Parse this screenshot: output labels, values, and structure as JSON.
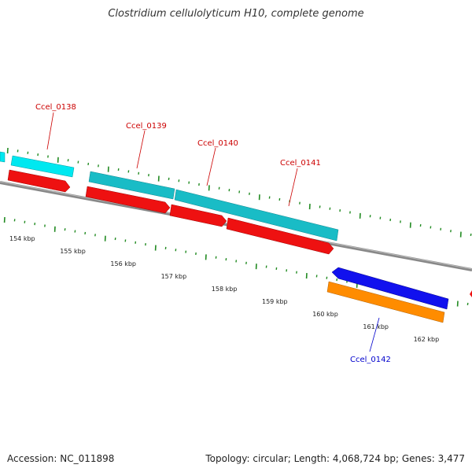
{
  "title": "Clostridium cellulolyticum H10, complete genome",
  "footer": {
    "accession": "Accession: NC_011898",
    "summary": "Topology: circular; Length: 4,068,724 bp; Genes: 3,477"
  },
  "colors": {
    "backbone": "#888888",
    "tick": "#228B22",
    "cds_forward": "#ee1111",
    "gene_forward": "#19bcc6",
    "gene_forward_light": "#00e8f0",
    "cds_reverse": "#1111ee",
    "gene_reverse": "#ff8c00",
    "label_forward": "#cc0000",
    "label_reverse": "#0000cc"
  },
  "ruler": {
    "unit": "kbp",
    "labels": [
      "154 kbp",
      "155 kbp",
      "156 kbp",
      "157 kbp",
      "158 kbp",
      "159 kbp",
      "160 kbp",
      "161 kbp",
      "162 kbp"
    ]
  },
  "genes": [
    {
      "name": "Ccel_0138",
      "strand": "forward"
    },
    {
      "name": "Ccel_0139",
      "strand": "forward"
    },
    {
      "name": "Ccel_0140",
      "strand": "forward"
    },
    {
      "name": "Ccel_0141",
      "strand": "forward"
    },
    {
      "name": "Ccel_0142",
      "strand": "reverse"
    }
  ]
}
